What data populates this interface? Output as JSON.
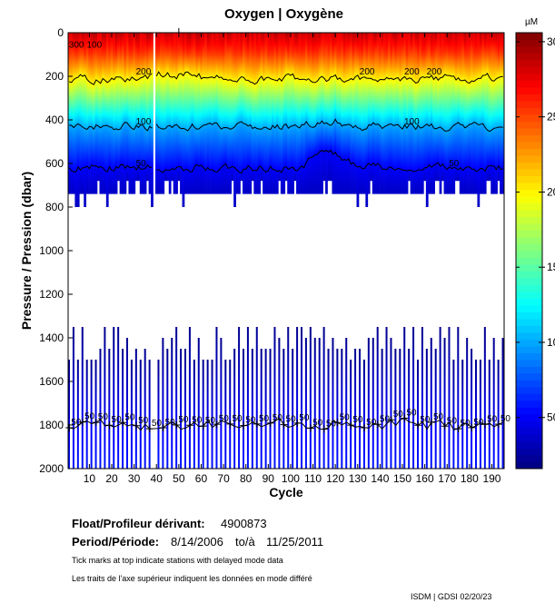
{
  "title": "Oxygen | Oxygène",
  "info": {
    "float_label": "Float/Profileur dérivant:",
    "float_id": "4900873",
    "period_label": "Period/Période:",
    "period_start": "8/14/2006",
    "period_sep": "to/à",
    "period_end": "11/25/2011",
    "note_en": "Tick marks at top indicate stations with delayed mode data",
    "note_fr": "Les traits de l'axe supérieur indiquent les données en mode différé",
    "credit": "ISDM | GDSI  02/20/23"
  },
  "chart_data": {
    "type": "heatmap",
    "xlabel": "Cycle",
    "ylabel": "Pressure / Pression (dbar)",
    "xlim": [
      1,
      195
    ],
    "ylim": [
      2000,
      0
    ],
    "y_inverted": true,
    "xticks": [
      10,
      20,
      30,
      40,
      50,
      60,
      70,
      80,
      90,
      100,
      110,
      120,
      130,
      140,
      150,
      160,
      170,
      180,
      190
    ],
    "yticks": [
      0,
      200,
      400,
      600,
      800,
      1000,
      1200,
      1400,
      1600,
      1800,
      2000
    ],
    "colorbar": {
      "label": "µM",
      "clim": [
        16,
        306
      ],
      "ticks": [
        50,
        100,
        150,
        200,
        250,
        300
      ],
      "colormap": "jet"
    },
    "grid": false,
    "missing_cycles": [
      39
    ],
    "delayed_mode_ticks": [
      50
    ],
    "shallow_profile_max_pressure": 740,
    "deep_profile_pressure_range": [
      1350,
      2000
    ],
    "representative_profile": {
      "pressure": [
        0,
        90,
        210,
        430,
        620,
        740,
        1400,
        1800,
        2000
      ],
      "oxygen": [
        280,
        255,
        200,
        100,
        50,
        35,
        22,
        50,
        58
      ]
    },
    "contours": [
      {
        "level": 300,
        "label": "300",
        "mean_pressure": 20
      },
      {
        "level": 200,
        "label": "200",
        "mean_pressure": 210
      },
      {
        "level": 100,
        "label": "100",
        "mean_pressure": 430
      },
      {
        "level": 50,
        "label": "50",
        "mean_pressure": 620
      },
      {
        "level": 50,
        "label": "50",
        "mean_pressure": 1800
      }
    ]
  }
}
